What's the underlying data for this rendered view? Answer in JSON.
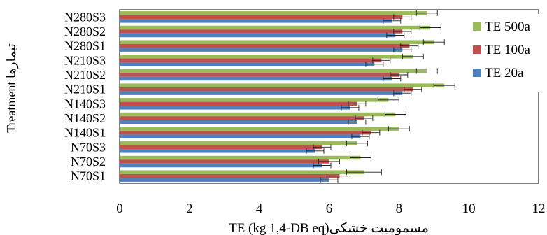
{
  "chart_data": {
    "type": "bar",
    "orientation": "horizontal",
    "categories": [
      "N280S3",
      "N280S2",
      "N280S1",
      "N210S3",
      "N210S2",
      "N210S1",
      "N140S3",
      "N140S2",
      "N140S1",
      "N70S3",
      "N70S2",
      "N70S1"
    ],
    "series": [
      {
        "name": "TE 500a",
        "color": "#9bbb59",
        "values": [
          8.8,
          8.9,
          9.0,
          8.4,
          8.8,
          9.3,
          7.7,
          7.9,
          8.0,
          6.8,
          6.9,
          7.0
        ],
        "errors": [
          0.3,
          0.3,
          0.3,
          0.3,
          0.3,
          0.3,
          0.3,
          0.3,
          0.3,
          0.3,
          0.3,
          0.5
        ]
      },
      {
        "name": "TE 100a",
        "color": "#c0504d",
        "values": [
          8.1,
          8.1,
          8.3,
          7.5,
          8.0,
          8.4,
          6.8,
          7.0,
          7.2,
          5.8,
          6.0,
          6.3
        ],
        "errors": [
          0.25,
          0.25,
          0.25,
          0.25,
          0.25,
          0.25,
          0.25,
          0.25,
          0.25,
          0.25,
          0.3,
          0.3
        ]
      },
      {
        "name": "TE 20a",
        "color": "#4f81bd",
        "values": [
          7.8,
          7.9,
          8.1,
          7.3,
          7.8,
          8.1,
          6.6,
          6.8,
          6.9,
          5.6,
          5.8,
          6.0
        ],
        "errors": [
          0.25,
          0.25,
          0.25,
          0.25,
          0.25,
          0.25,
          0.25,
          0.25,
          0.25,
          0.25,
          0.25,
          0.25
        ]
      }
    ],
    "xlabel": "TE (kg 1,4-DB eq)مسمومیت خشکی",
    "ylabel": "Treatment   تیمارها",
    "xlim": [
      0,
      12
    ],
    "xticks": [
      "0",
      "2",
      "4",
      "6",
      "8",
      "10",
      "12"
    ],
    "grid": false,
    "legend_position": "right",
    "legend_order": [
      "TE 500a",
      "TE 100a",
      "TE 20a"
    ],
    "error_bars": true
  }
}
